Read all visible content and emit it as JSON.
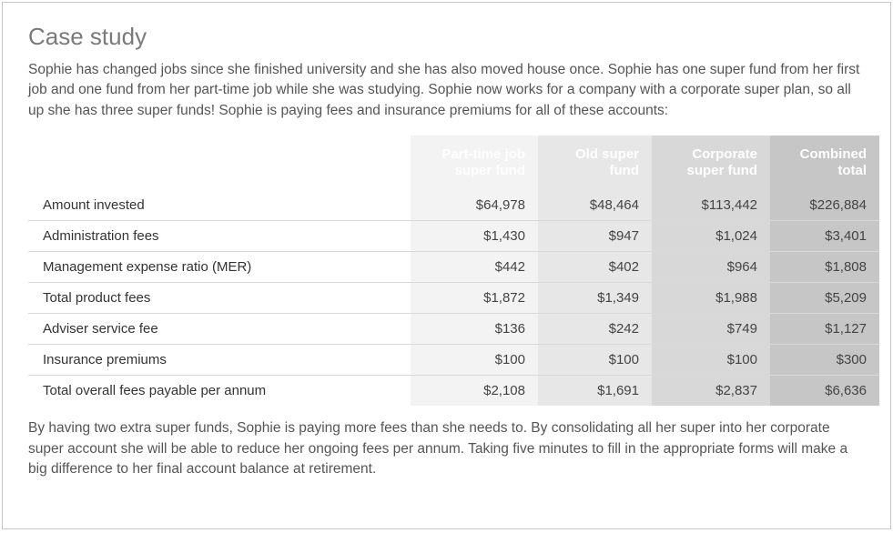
{
  "title": "Case study",
  "intro": "Sophie has changed jobs since she finished university and she has also moved house once. Sophie has one super fund from her first job and one fund from her part-time job while she was studying. Sophie now works for a company with a corporate super plan, so all up she has three super funds! Sophie is paying fees and insurance premiums for all of these accounts:",
  "outro": "By having two extra super funds, Sophie is paying more fees than she needs to. By consolidating all her super into her corporate super account she will be able to reduce her ongoing fees per annum. Taking five minutes to fill in the appropriate forms will make a big difference to her final account balance at retirement.",
  "table": {
    "columns": [
      {
        "label": "",
        "class": "col-label"
      },
      {
        "label": "Part-time job super fund",
        "class": "col-1"
      },
      {
        "label": "Old super fund",
        "class": "col-2"
      },
      {
        "label": "Corporate super fund",
        "class": "col-3"
      },
      {
        "label": "Combined total",
        "class": "col-4"
      }
    ],
    "rows": [
      {
        "label": "Amount invested",
        "c1": "$64,978",
        "c2": "$48,464",
        "c3": "$113,442",
        "c4": "$226,884"
      },
      {
        "label": "Administration fees",
        "c1": "$1,430",
        "c2": "$947",
        "c3": "$1,024",
        "c4": "$3,401"
      },
      {
        "label": "Management expense ratio (MER)",
        "c1": "$442",
        "c2": "$402",
        "c3": "$964",
        "c4": "$1,808"
      },
      {
        "label": "Total product fees",
        "c1": "$1,872",
        "c2": "$1,349",
        "c3": "$1,988",
        "c4": "$5,209"
      },
      {
        "label": "Adviser service fee",
        "c1": "$136",
        "c2": "$242",
        "c3": "$749",
        "c4": "$1,127"
      },
      {
        "label": "Insurance premiums",
        "c1": "$100",
        "c2": "$100",
        "c3": "$100",
        "c4": "$300"
      },
      {
        "label": "Total overall fees payable per annum",
        "c1": "$2,108",
        "c2": "$1,691",
        "c3": "$2,837",
        "c4": "$6,636"
      }
    ],
    "header_bg": "#8d8d8d",
    "header_text": "#ffffff",
    "col_shades": [
      "#ffffff",
      "#f3f3f3",
      "#e7e7e7",
      "#d8d8d8",
      "#c6c6c6"
    ],
    "row_border": "#d9d9d9"
  }
}
